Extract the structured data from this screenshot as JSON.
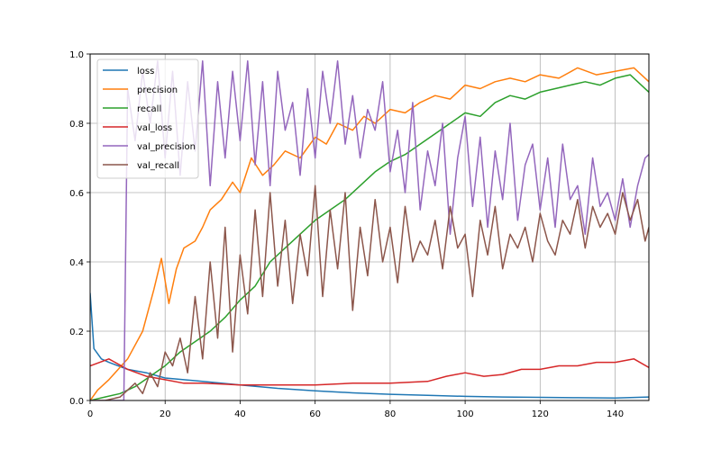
{
  "chart_data": {
    "type": "line",
    "title": "",
    "xlabel": "",
    "ylabel": "",
    "xlim": [
      0,
      149
    ],
    "ylim": [
      0,
      1.0
    ],
    "grid": true,
    "legend_position": "upper-left",
    "x_ticks": [
      0,
      20,
      40,
      60,
      80,
      100,
      120,
      140
    ],
    "y_ticks": [
      0.0,
      0.2,
      0.4,
      0.6,
      0.8,
      1.0
    ],
    "x_tick_labels": [
      "0",
      "20",
      "40",
      "60",
      "80",
      "100",
      "120",
      "140"
    ],
    "y_tick_labels": [
      "0.0",
      "0.2",
      "0.4",
      "0.6",
      "0.8",
      "1.0"
    ],
    "colors": [
      "#1f77b4",
      "#ff7f0e",
      "#2ca02c",
      "#d62728",
      "#9467bd",
      "#8c564b"
    ],
    "series": [
      {
        "name": "loss",
        "color": "#1f77b4",
        "x": [
          0,
          1,
          3,
          5,
          10,
          15,
          20,
          30,
          40,
          50,
          60,
          70,
          80,
          90,
          100,
          110,
          120,
          130,
          140,
          149
        ],
        "values": [
          0.31,
          0.15,
          0.12,
          0.11,
          0.09,
          0.08,
          0.065,
          0.055,
          0.045,
          0.035,
          0.028,
          0.022,
          0.018,
          0.015,
          0.012,
          0.01,
          0.009,
          0.008,
          0.007,
          0.01
        ]
      },
      {
        "name": "precision",
        "color": "#ff7f0e",
        "x": [
          0,
          2,
          5,
          10,
          14,
          17,
          19,
          21,
          23,
          25,
          28,
          30,
          32,
          35,
          38,
          40,
          43,
          46,
          49,
          52,
          56,
          60,
          63,
          66,
          70,
          73,
          76,
          80,
          84,
          88,
          92,
          96,
          100,
          104,
          108,
          112,
          116,
          120,
          125,
          130,
          135,
          140,
          145,
          149
        ],
        "values": [
          0.0,
          0.03,
          0.06,
          0.12,
          0.2,
          0.32,
          0.41,
          0.28,
          0.38,
          0.44,
          0.46,
          0.5,
          0.55,
          0.58,
          0.63,
          0.6,
          0.7,
          0.65,
          0.68,
          0.72,
          0.7,
          0.76,
          0.74,
          0.8,
          0.78,
          0.82,
          0.8,
          0.84,
          0.83,
          0.86,
          0.88,
          0.87,
          0.91,
          0.9,
          0.92,
          0.93,
          0.92,
          0.94,
          0.93,
          0.96,
          0.94,
          0.95,
          0.96,
          0.92
        ]
      },
      {
        "name": "recall",
        "color": "#2ca02c",
        "x": [
          0,
          4,
          8,
          12,
          16,
          20,
          24,
          28,
          32,
          36,
          40,
          44,
          48,
          52,
          56,
          60,
          64,
          68,
          72,
          76,
          80,
          84,
          88,
          92,
          96,
          100,
          104,
          108,
          112,
          116,
          120,
          124,
          128,
          132,
          136,
          140,
          144,
          149
        ],
        "values": [
          0.0,
          0.01,
          0.02,
          0.04,
          0.07,
          0.1,
          0.14,
          0.17,
          0.2,
          0.24,
          0.29,
          0.33,
          0.4,
          0.44,
          0.48,
          0.52,
          0.55,
          0.58,
          0.62,
          0.66,
          0.69,
          0.71,
          0.74,
          0.77,
          0.8,
          0.83,
          0.82,
          0.86,
          0.88,
          0.87,
          0.89,
          0.9,
          0.91,
          0.92,
          0.91,
          0.93,
          0.94,
          0.89
        ]
      },
      {
        "name": "val_loss",
        "color": "#d62728",
        "x": [
          0,
          5,
          10,
          15,
          20,
          25,
          30,
          40,
          50,
          60,
          70,
          80,
          90,
          95,
          100,
          105,
          110,
          115,
          120,
          125,
          130,
          135,
          140,
          145,
          149
        ],
        "values": [
          0.1,
          0.12,
          0.09,
          0.07,
          0.06,
          0.05,
          0.05,
          0.045,
          0.045,
          0.045,
          0.05,
          0.05,
          0.055,
          0.07,
          0.08,
          0.07,
          0.075,
          0.09,
          0.09,
          0.1,
          0.1,
          0.11,
          0.11,
          0.12,
          0.095
        ]
      },
      {
        "name": "val_precision",
        "color": "#9467bd",
        "x": [
          0,
          5,
          9,
          10,
          12,
          14,
          16,
          18,
          20,
          22,
          24,
          26,
          28,
          30,
          32,
          34,
          36,
          38,
          40,
          42,
          44,
          46,
          48,
          50,
          52,
          54,
          56,
          58,
          60,
          62,
          64,
          66,
          68,
          70,
          72,
          74,
          76,
          78,
          80,
          82,
          84,
          86,
          88,
          90,
          92,
          94,
          96,
          98,
          100,
          102,
          104,
          106,
          108,
          110,
          112,
          114,
          116,
          118,
          120,
          122,
          124,
          126,
          128,
          130,
          132,
          134,
          136,
          138,
          140,
          142,
          144,
          146,
          148,
          149
        ],
        "values": [
          0.0,
          0.0,
          0.0,
          0.9,
          0.75,
          0.95,
          0.8,
          0.98,
          0.7,
          0.95,
          0.65,
          0.92,
          0.72,
          0.98,
          0.62,
          0.92,
          0.7,
          0.95,
          0.75,
          0.98,
          0.68,
          0.92,
          0.62,
          0.95,
          0.78,
          0.86,
          0.65,
          0.9,
          0.7,
          0.95,
          0.8,
          0.98,
          0.74,
          0.88,
          0.7,
          0.84,
          0.78,
          0.92,
          0.66,
          0.78,
          0.6,
          0.86,
          0.55,
          0.72,
          0.62,
          0.8,
          0.48,
          0.7,
          0.82,
          0.56,
          0.76,
          0.5,
          0.72,
          0.58,
          0.8,
          0.52,
          0.68,
          0.74,
          0.55,
          0.7,
          0.5,
          0.74,
          0.58,
          0.62,
          0.48,
          0.7,
          0.56,
          0.6,
          0.52,
          0.64,
          0.5,
          0.62,
          0.7,
          0.71
        ]
      },
      {
        "name": "val_recall",
        "color": "#8c564b",
        "x": [
          0,
          4,
          8,
          10,
          12,
          14,
          16,
          18,
          20,
          22,
          24,
          26,
          28,
          30,
          32,
          34,
          36,
          38,
          40,
          42,
          44,
          46,
          48,
          50,
          52,
          54,
          56,
          58,
          60,
          62,
          64,
          66,
          68,
          70,
          72,
          74,
          76,
          78,
          80,
          82,
          84,
          86,
          88,
          90,
          92,
          94,
          96,
          98,
          100,
          102,
          104,
          106,
          108,
          110,
          112,
          114,
          116,
          118,
          120,
          122,
          124,
          126,
          128,
          130,
          132,
          134,
          136,
          138,
          140,
          142,
          144,
          146,
          148,
          149
        ],
        "values": [
          0.0,
          0.0,
          0.01,
          0.03,
          0.05,
          0.02,
          0.08,
          0.04,
          0.14,
          0.1,
          0.18,
          0.08,
          0.3,
          0.12,
          0.4,
          0.18,
          0.5,
          0.14,
          0.42,
          0.25,
          0.55,
          0.3,
          0.6,
          0.33,
          0.52,
          0.28,
          0.48,
          0.36,
          0.62,
          0.3,
          0.55,
          0.38,
          0.6,
          0.26,
          0.5,
          0.36,
          0.58,
          0.4,
          0.5,
          0.34,
          0.56,
          0.4,
          0.46,
          0.42,
          0.52,
          0.38,
          0.56,
          0.44,
          0.48,
          0.3,
          0.52,
          0.42,
          0.56,
          0.38,
          0.48,
          0.44,
          0.5,
          0.4,
          0.54,
          0.46,
          0.42,
          0.52,
          0.48,
          0.58,
          0.44,
          0.56,
          0.5,
          0.54,
          0.48,
          0.6,
          0.52,
          0.58,
          0.46,
          0.5
        ]
      }
    ]
  }
}
